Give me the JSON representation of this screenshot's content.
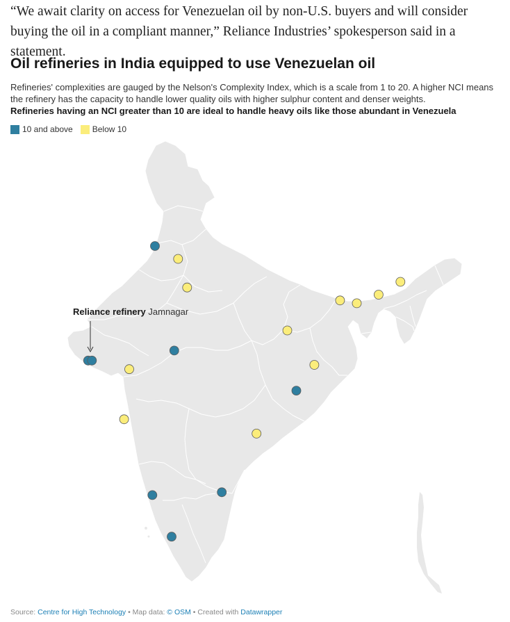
{
  "article": {
    "quote": "“We await clarity on access for Venezuelan oil by non-U.S. buyers and will consider buying the oil in a compliant manner,” Reliance Industries’ spokesperson said in a statement."
  },
  "chart": {
    "title": "Oil refineries in India equipped to use Venezuelan oil",
    "description": "Refineries' complexities are gauged by the Nelson's Complexity Index, which is a scale from 1 to 20. A higher NCI means the refinery has the capacity to handle lower quality oils with higher sulphur content and denser weights.",
    "description_bold": "Refineries having an NCI greater than 10 are ideal to handle heavy oils like those abundant in Venezuela",
    "legend": [
      {
        "label": "10 and above",
        "color": "#2f7fa0"
      },
      {
        "label": "Below 10",
        "color": "#fbed7b"
      }
    ],
    "annotation": {
      "bold": "Reliance refinery",
      "text": "Jamnagar"
    }
  },
  "map_data": {
    "region": "India",
    "projection": "equirectangular",
    "bounds": {
      "lon": [
        68,
        97.5
      ],
      "lat": [
        6.5,
        37
      ]
    },
    "colors": {
      "land": "#e8e8e8",
      "border": "#ffffff",
      "high": "#2f7fa0",
      "low": "#fbed7b",
      "marker_stroke": "#5a5a5a"
    },
    "refineries": [
      {
        "category": "high",
        "lon": 75.0,
        "lat": 30.3
      },
      {
        "category": "high",
        "lon": 76.5,
        "lat": 23.0
      },
      {
        "category": "high",
        "lon": 69.8,
        "lat": 22.3
      },
      {
        "category": "high",
        "lon": 70.1,
        "lat": 22.3
      },
      {
        "category": "high",
        "lon": 86.0,
        "lat": 20.2
      },
      {
        "category": "high",
        "lon": 80.2,
        "lat": 13.1
      },
      {
        "category": "high",
        "lon": 74.8,
        "lat": 12.9
      },
      {
        "category": "high",
        "lon": 76.3,
        "lat": 10.0
      },
      {
        "category": "low",
        "lon": 76.8,
        "lat": 29.4
      },
      {
        "category": "low",
        "lon": 77.5,
        "lat": 27.4
      },
      {
        "category": "low",
        "lon": 85.3,
        "lat": 24.4
      },
      {
        "category": "low",
        "lon": 73.0,
        "lat": 21.7
      },
      {
        "category": "low",
        "lon": 72.6,
        "lat": 18.2
      },
      {
        "category": "low",
        "lon": 87.4,
        "lat": 22.0
      },
      {
        "category": "low",
        "lon": 82.9,
        "lat": 17.2
      },
      {
        "category": "low",
        "lon": 89.4,
        "lat": 26.5
      },
      {
        "category": "low",
        "lon": 90.7,
        "lat": 26.3
      },
      {
        "category": "low",
        "lon": 92.4,
        "lat": 26.9
      },
      {
        "category": "low",
        "lon": 94.1,
        "lat": 27.8
      }
    ]
  },
  "footer": {
    "source_label": "Source:",
    "source_link": "Centre for High Technology",
    "map_label": "• Map data:",
    "map_link": "© OSM",
    "created_label": "• Created with",
    "created_link": "Datawrapper"
  }
}
